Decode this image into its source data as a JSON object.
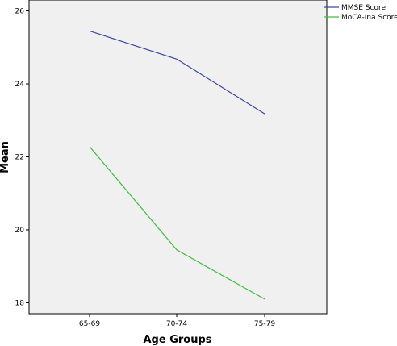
{
  "chart_data": {
    "type": "line",
    "categories": [
      "65-69",
      "70-74",
      "75-79"
    ],
    "series": [
      {
        "name": "MMSE Score",
        "values": [
          25.45,
          24.68,
          23.18
        ],
        "color": "#3c48a0"
      },
      {
        "name": "MoCA-Ina Score",
        "values": [
          22.28,
          19.45,
          18.1
        ],
        "color": "#3cbf3c"
      }
    ],
    "title": "",
    "xlabel": "Age Groups",
    "ylabel": "Mean",
    "ylim": [
      17.7,
      26.3
    ],
    "yticks": [
      18,
      20,
      22,
      24,
      26
    ],
    "grid": false,
    "legend": "top-right",
    "plot_background": "#f0f0f0"
  }
}
